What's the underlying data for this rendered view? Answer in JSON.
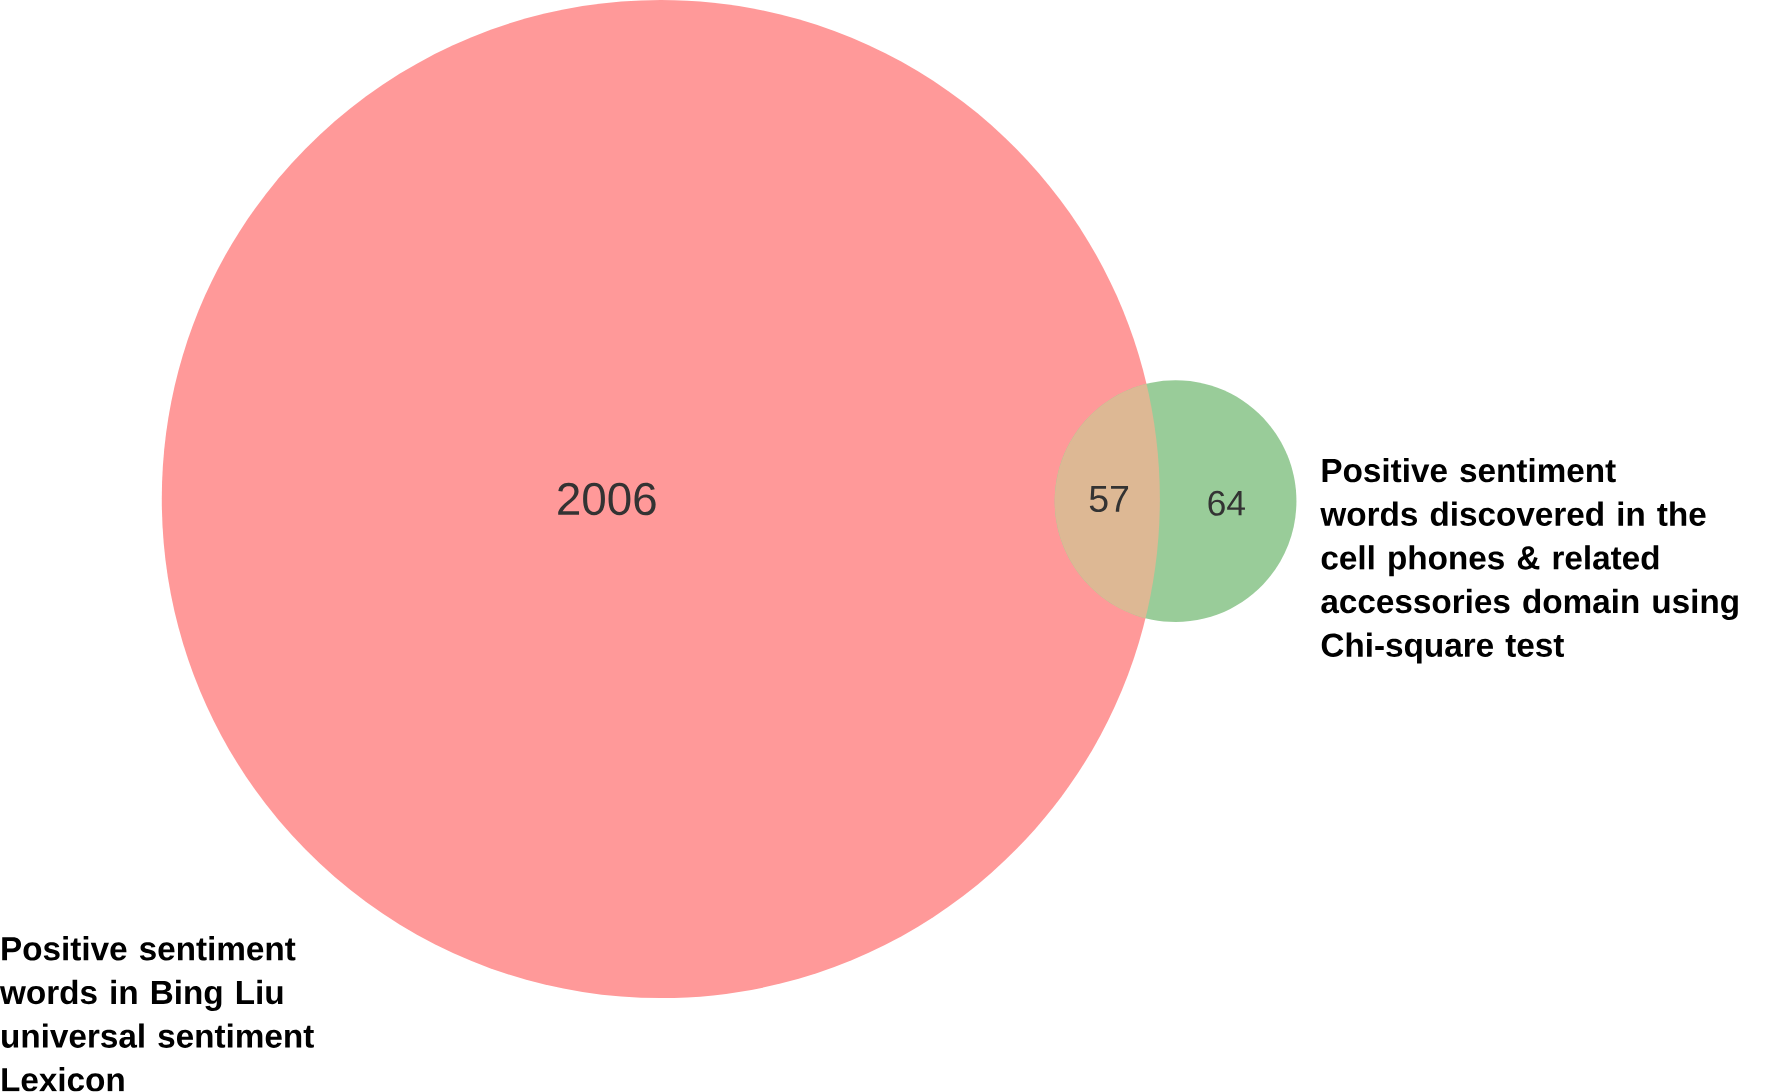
{
  "chart_data": {
    "type": "other",
    "categories": [
      "Positive sentiment words in Bing Liu universal sentiment Lexicon",
      null,
      "Positive sentiment words discovered in the cell phones & related accessories domain using Chi-square test"
    ],
    "values": [
      2006,
      57,
      64
    ],
    "value_labels": [
      "2006",
      "57",
      "64"
    ],
    "colors": [
      "#ff9999",
      "#ddb894",
      "#99cc99"
    ]
  }
}
